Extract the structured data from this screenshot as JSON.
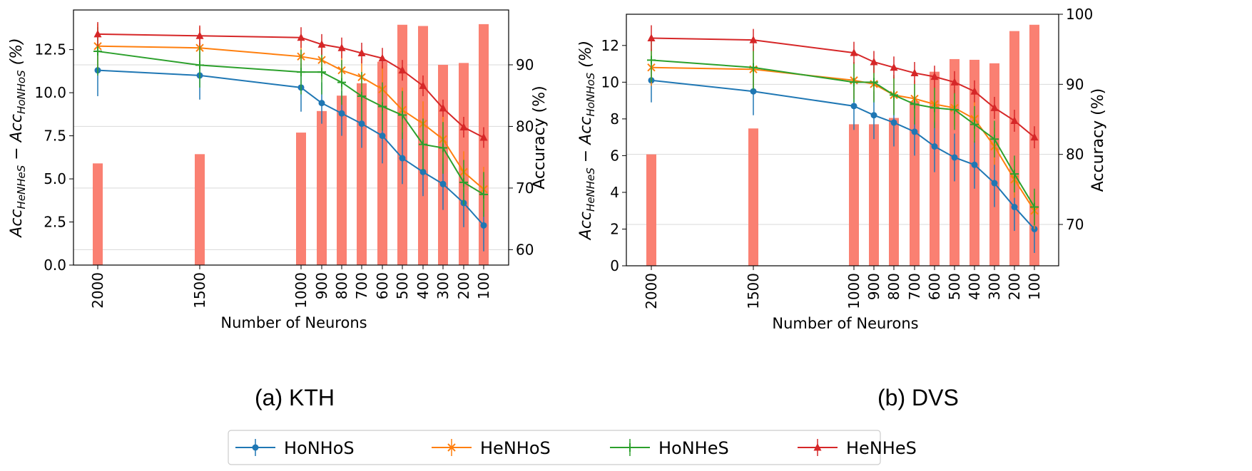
{
  "colors": {
    "HoNHoS": "#1f77b4",
    "HeNHoS": "#ff7f0e",
    "HoNHeS": "#2ca02c",
    "HeNHeS": "#d62728",
    "bar": "#fa8072",
    "grid": "#d9d9d9"
  },
  "legend": {
    "placement": "bottom-center",
    "items": [
      {
        "name": "HoNHoS",
        "marker": "circle",
        "color": "#1f77b4"
      },
      {
        "name": "HeNHoS",
        "marker": "x",
        "color": "#ff7f0e"
      },
      {
        "name": "HoNHeS",
        "marker": "plus",
        "color": "#2ca02c"
      },
      {
        "name": "HeNHeS",
        "marker": "triangle",
        "color": "#d62728"
      }
    ]
  },
  "chart_data": [
    {
      "caption": "(a) KTH",
      "type": "line",
      "secondary_type": "bar",
      "xlabel": "Number of Neurons",
      "ylabel": "Acc_HeNHeS − Acc_HoNHoS (%)",
      "ylabel_right": "Accuracy (%)",
      "x": [
        "2000",
        "1500",
        "1000",
        "900",
        "800",
        "700",
        "600",
        "500",
        "400",
        "300",
        "200",
        "100"
      ],
      "ylim": [
        0,
        14.8
      ],
      "yticks": [
        "0.0",
        "2.5",
        "5.0",
        "7.5",
        "10.0",
        "12.5"
      ],
      "ylim_right": [
        57.5,
        98.9
      ],
      "yticks_right": [
        "60",
        "70",
        "80",
        "90"
      ],
      "grid": "horizontal (right axis)",
      "series": [
        {
          "name": "HoNHoS",
          "values": [
            11.3,
            11.0,
            10.3,
            9.4,
            8.8,
            8.2,
            7.5,
            6.2,
            5.4,
            4.7,
            3.6,
            2.3
          ],
          "errors": [
            1.5,
            1.4,
            1.4,
            1.2,
            1.3,
            1.4,
            1.6,
            1.5,
            1.4,
            1.5,
            1.4,
            1.5
          ]
        },
        {
          "name": "HeNHoS",
          "values": [
            12.7,
            12.6,
            12.1,
            11.9,
            11.3,
            10.9,
            10.2,
            9.0,
            8.2,
            7.3,
            5.4,
            4.4
          ],
          "errors": [
            1.3,
            1.2,
            1.1,
            1.1,
            1.1,
            1.1,
            1.4,
            1.3,
            1.3,
            1.4,
            1.2,
            1.3
          ]
        },
        {
          "name": "HoNHeS",
          "values": [
            12.4,
            11.6,
            11.2,
            11.2,
            10.6,
            9.8,
            9.2,
            8.7,
            7.0,
            6.8,
            4.8,
            4.1
          ],
          "errors": [
            1.4,
            1.3,
            1.3,
            1.3,
            1.3,
            1.4,
            1.4,
            1.4,
            1.5,
            1.5,
            1.3,
            1.3
          ]
        },
        {
          "name": "HeNHeS",
          "values": [
            13.4,
            13.3,
            13.2,
            12.8,
            12.6,
            12.3,
            12.0,
            11.3,
            10.4,
            9.1,
            8.0,
            7.4
          ],
          "errors": [
            0.7,
            0.6,
            0.6,
            0.6,
            0.6,
            0.6,
            0.6,
            0.6,
            0.6,
            0.5,
            0.6,
            0.6
          ]
        }
      ],
      "bars": [
        74,
        75.5,
        79,
        82.5,
        85,
        87,
        90.5,
        96.5,
        96.3,
        90,
        90.3,
        96.6
      ]
    },
    {
      "caption": "(b) DVS",
      "type": "line",
      "secondary_type": "bar",
      "xlabel": "Number of Neurons",
      "ylabel": "Acc_HeNHeS − Acc_HoNHoS (%)",
      "ylabel_right": "Accuracy (%)",
      "x": [
        "2000",
        "1500",
        "1000",
        "900",
        "800",
        "700",
        "600",
        "500",
        "400",
        "300",
        "200",
        "100"
      ],
      "ylim": [
        0,
        13.7
      ],
      "yticks": [
        "0",
        "2",
        "4",
        "6",
        "8",
        "10",
        "12"
      ],
      "ylim_right": [
        64.1,
        100
      ],
      "yticks_right": [
        "70",
        "80",
        "90",
        "100"
      ],
      "grid": "horizontal (right axis)",
      "series": [
        {
          "name": "HoNHoS",
          "values": [
            10.1,
            9.5,
            8.7,
            8.2,
            7.8,
            7.3,
            6.5,
            5.9,
            5.5,
            4.5,
            3.2,
            2.0
          ],
          "errors": [
            1.2,
            1.3,
            1.3,
            1.3,
            1.3,
            1.3,
            1.4,
            1.3,
            1.3,
            1.3,
            1.3,
            1.3
          ]
        },
        {
          "name": "HeNHoS",
          "values": [
            10.8,
            10.7,
            10.1,
            9.9,
            9.3,
            9.1,
            8.8,
            8.6,
            8.0,
            6.5,
            4.7,
            3.0
          ],
          "errors": [
            1.0,
            1.0,
            1.0,
            0.9,
            1.0,
            1.0,
            1.0,
            1.0,
            1.0,
            1.0,
            1.0,
            1.0
          ]
        },
        {
          "name": "HoNHeS",
          "values": [
            11.2,
            10.8,
            10.0,
            10.0,
            9.3,
            8.8,
            8.6,
            8.5,
            7.7,
            6.9,
            5.0,
            3.2
          ],
          "errors": [
            1.2,
            1.2,
            1.1,
            1.1,
            1.1,
            1.1,
            1.1,
            1.1,
            1.0,
            1.0,
            1.0,
            1.0
          ]
        },
        {
          "name": "HeNHeS",
          "values": [
            12.4,
            12.3,
            11.6,
            11.1,
            10.8,
            10.5,
            10.3,
            10.0,
            9.5,
            8.6,
            7.9,
            7.0
          ],
          "errors": [
            0.7,
            0.6,
            0.6,
            0.6,
            0.6,
            0.6,
            0.6,
            0.6,
            0.6,
            0.6,
            0.6,
            0.6
          ]
        }
      ],
      "bars": [
        80,
        83.7,
        84.3,
        84.3,
        85.2,
        87.6,
        91.8,
        93.6,
        93.5,
        93,
        97.6,
        98.5
      ]
    }
  ]
}
